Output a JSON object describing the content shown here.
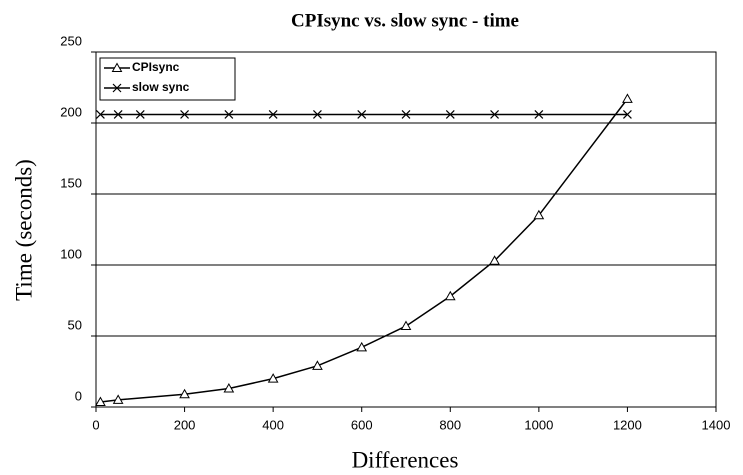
{
  "chart_data": {
    "type": "line",
    "title": "CPIsync vs. slow sync - time",
    "x_label": "Differences",
    "y_label": "Time  (seconds)",
    "xlim": [
      0,
      1400
    ],
    "xticks": [
      0,
      200,
      400,
      600,
      800,
      1000,
      1200,
      1400
    ],
    "ylim": [
      0,
      250
    ],
    "yticks": [
      0,
      50,
      100,
      150,
      200,
      250
    ],
    "grid": true,
    "legend": "top-left",
    "series": [
      {
        "name": "CPIsync",
        "color": "#000000",
        "marker": "triangle",
        "x": [
          10,
          50,
          200,
          300,
          400,
          500,
          600,
          700,
          800,
          900,
          1000,
          1200
        ],
        "values": [
          3.5,
          5,
          9,
          13,
          20,
          29,
          42,
          57,
          78,
          103,
          135,
          217
        ]
      },
      {
        "name": "slow  sync",
        "color": "#000000",
        "marker": "x",
        "x": [
          10,
          50,
          100,
          200,
          300,
          400,
          500,
          600,
          700,
          800,
          900,
          1000,
          1200
        ],
        "values": [
          206,
          206,
          206,
          206,
          206,
          206,
          206,
          206,
          206,
          206,
          206,
          206,
          206
        ]
      }
    ]
  }
}
